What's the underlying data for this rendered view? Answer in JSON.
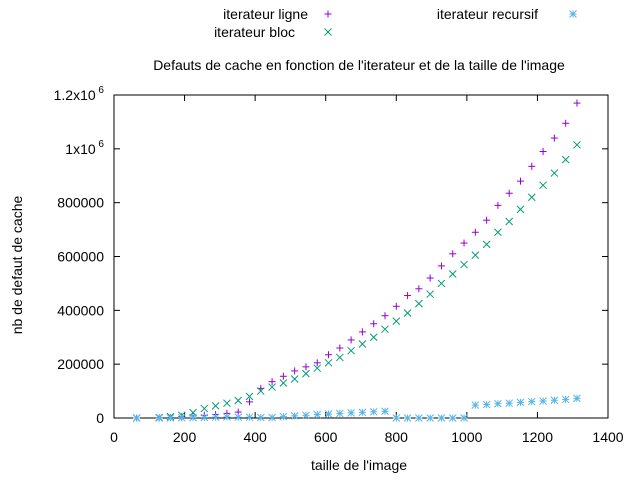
{
  "chart_data": {
    "type": "scatter",
    "title": "Defauts de cache en fonction de l'iterateur et de la taille de l'image",
    "xlabel": "taille de l'image",
    "ylabel": "nb de defaut de cache",
    "xlim": [
      0,
      1400
    ],
    "ylim": [
      0,
      1200000
    ],
    "grid": false,
    "legend_position": "top",
    "x_ticks": [
      {
        "value": 0,
        "label": "0"
      },
      {
        "value": 200,
        "label": "200"
      },
      {
        "value": 400,
        "label": "400"
      },
      {
        "value": 600,
        "label": "600"
      },
      {
        "value": 800,
        "label": "800"
      },
      {
        "value": 1000,
        "label": "1000"
      },
      {
        "value": 1200,
        "label": "1200"
      },
      {
        "value": 1400,
        "label": "1400"
      }
    ],
    "y_ticks": [
      {
        "value": 0,
        "label": "0"
      },
      {
        "value": 200000,
        "label": "200000"
      },
      {
        "value": 400000,
        "label": "400000"
      },
      {
        "value": 600000,
        "label": "600000"
      },
      {
        "value": 800000,
        "label": "800000"
      },
      {
        "value": 1000000,
        "label": "1x10",
        "sup": "6"
      },
      {
        "value": 1200000,
        "label": "1.2x10",
        "sup": "6"
      }
    ],
    "series": [
      {
        "name": "iterateur ligne",
        "marker": "plus",
        "color": "#9400d3",
        "points": [
          [
            64,
            0
          ],
          [
            128,
            1000
          ],
          [
            160,
            2000
          ],
          [
            192,
            5000
          ],
          [
            224,
            8000
          ],
          [
            256,
            10000
          ],
          [
            288,
            13000
          ],
          [
            320,
            17000
          ],
          [
            352,
            22000
          ],
          [
            384,
            60000
          ],
          [
            416,
            110000
          ],
          [
            448,
            135000
          ],
          [
            480,
            155000
          ],
          [
            512,
            175000
          ],
          [
            544,
            190000
          ],
          [
            576,
            205000
          ],
          [
            608,
            235000
          ],
          [
            640,
            260000
          ],
          [
            672,
            290000
          ],
          [
            704,
            320000
          ],
          [
            736,
            350000
          ],
          [
            768,
            380000
          ],
          [
            800,
            415000
          ],
          [
            832,
            455000
          ],
          [
            864,
            480000
          ],
          [
            896,
            520000
          ],
          [
            928,
            565000
          ],
          [
            960,
            610000
          ],
          [
            992,
            650000
          ],
          [
            1024,
            690000
          ],
          [
            1056,
            735000
          ],
          [
            1088,
            790000
          ],
          [
            1120,
            835000
          ],
          [
            1152,
            880000
          ],
          [
            1184,
            935000
          ],
          [
            1216,
            990000
          ],
          [
            1248,
            1040000
          ],
          [
            1280,
            1095000
          ],
          [
            1312,
            1170000
          ]
        ]
      },
      {
        "name": "iterateur bloc",
        "marker": "cross",
        "color": "#009e73",
        "points": [
          [
            64,
            0
          ],
          [
            128,
            2000
          ],
          [
            160,
            5000
          ],
          [
            192,
            10000
          ],
          [
            224,
            20000
          ],
          [
            256,
            35000
          ],
          [
            288,
            45000
          ],
          [
            320,
            55000
          ],
          [
            352,
            65000
          ],
          [
            384,
            80000
          ],
          [
            416,
            100000
          ],
          [
            448,
            115000
          ],
          [
            480,
            130000
          ],
          [
            512,
            145000
          ],
          [
            544,
            165000
          ],
          [
            576,
            185000
          ],
          [
            608,
            205000
          ],
          [
            640,
            225000
          ],
          [
            672,
            250000
          ],
          [
            704,
            275000
          ],
          [
            736,
            300000
          ],
          [
            768,
            330000
          ],
          [
            800,
            360000
          ],
          [
            832,
            390000
          ],
          [
            864,
            425000
          ],
          [
            896,
            460000
          ],
          [
            928,
            500000
          ],
          [
            960,
            535000
          ],
          [
            992,
            570000
          ],
          [
            1024,
            605000
          ],
          [
            1056,
            645000
          ],
          [
            1088,
            690000
          ],
          [
            1120,
            730000
          ],
          [
            1152,
            775000
          ],
          [
            1184,
            820000
          ],
          [
            1216,
            865000
          ],
          [
            1248,
            910000
          ],
          [
            1280,
            960000
          ],
          [
            1312,
            1015000
          ]
        ]
      },
      {
        "name": "iterateur recursif",
        "marker": "star",
        "color": "#56b4e9",
        "points": [
          [
            64,
            0
          ],
          [
            128,
            0
          ],
          [
            160,
            500
          ],
          [
            192,
            1000
          ],
          [
            224,
            1500
          ],
          [
            256,
            2000
          ],
          [
            288,
            3000
          ],
          [
            320,
            4000
          ],
          [
            352,
            3000
          ],
          [
            384,
            3000
          ],
          [
            416,
            2000
          ],
          [
            448,
            2000
          ],
          [
            480,
            5000
          ],
          [
            512,
            8000
          ],
          [
            544,
            10000
          ],
          [
            576,
            13000
          ],
          [
            608,
            15000
          ],
          [
            640,
            17000
          ],
          [
            672,
            19000
          ],
          [
            704,
            21000
          ],
          [
            736,
            23000
          ],
          [
            768,
            25000
          ],
          [
            800,
            0
          ],
          [
            832,
            0
          ],
          [
            864,
            0
          ],
          [
            896,
            0
          ],
          [
            928,
            0
          ],
          [
            960,
            0
          ],
          [
            992,
            500
          ],
          [
            1024,
            48000
          ],
          [
            1056,
            50000
          ],
          [
            1088,
            53000
          ],
          [
            1120,
            55000
          ],
          [
            1152,
            58000
          ],
          [
            1184,
            61000
          ],
          [
            1216,
            63000
          ],
          [
            1248,
            66000
          ],
          [
            1280,
            69000
          ],
          [
            1312,
            73000
          ]
        ]
      }
    ]
  }
}
